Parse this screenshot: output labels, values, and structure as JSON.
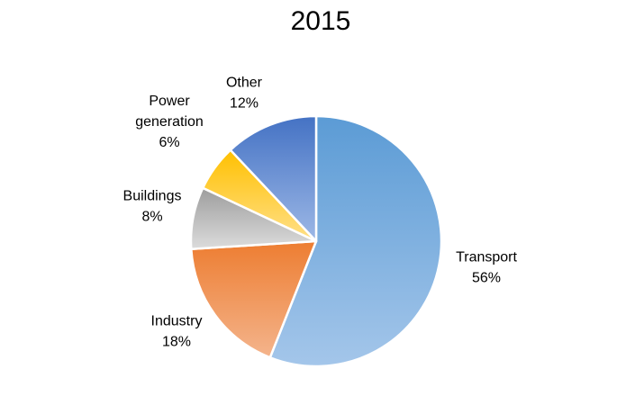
{
  "chart_data": {
    "type": "pie",
    "title": "2015",
    "slices": [
      {
        "label": "Transport",
        "value": 56,
        "percent_label": "56%",
        "colors": [
          "#5b9bd5",
          "#a4c6ea"
        ]
      },
      {
        "label": "Industry",
        "value": 18,
        "percent_label": "18%",
        "colors": [
          "#ed7d31",
          "#f4b48c"
        ]
      },
      {
        "label": "Buildings",
        "value": 8,
        "percent_label": "8%",
        "colors": [
          "#9d9d9d",
          "#dcdcdc"
        ]
      },
      {
        "label": "Power generation",
        "value": 6,
        "percent_label": "6%",
        "colors": [
          "#ffc000",
          "#ffe08a"
        ]
      },
      {
        "label": "Other",
        "value": 12,
        "percent_label": "12%",
        "colors": [
          "#4472c4",
          "#9db8e6"
        ]
      }
    ],
    "legend": "none",
    "start_angle": "12 o'clock",
    "direction": "clockwise"
  }
}
